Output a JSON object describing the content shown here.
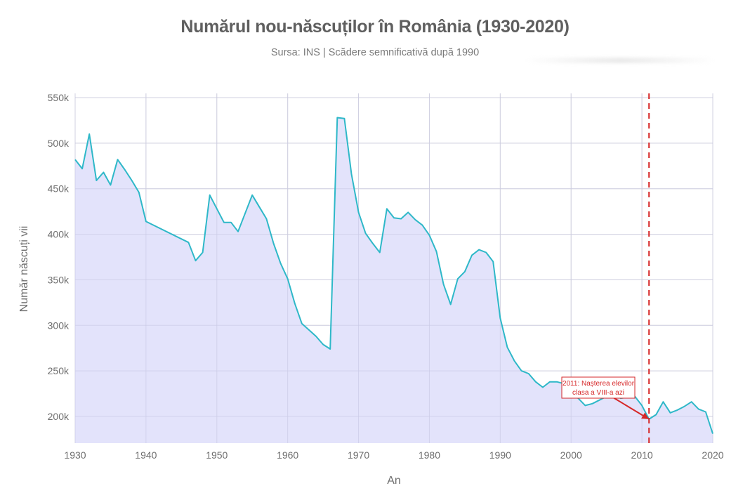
{
  "header": {
    "title": "Numărul nou-născuților în România (1930-2020)",
    "subtitle": "Sursa: INS | Scădere semnificativă după 1990"
  },
  "colors": {
    "line": "#2eb8c8",
    "fill": "#e0e0fb",
    "grid": "#dcdcdc",
    "annotation": "#d62728",
    "title": "#5f5f5f",
    "tick": "#6e6e6e"
  },
  "chart_data": {
    "type": "area",
    "title": "Numărul nou-născuților în România (1930-2020)",
    "subtitle": "Sursa: INS | Scădere semnificativă după 1990",
    "xlabel": "An",
    "ylabel": "Număr născuți vii",
    "xlim": [
      1930,
      2020
    ],
    "ylim": [
      170000,
      555000
    ],
    "x_ticks": [
      1930,
      1940,
      1950,
      1960,
      1970,
      1980,
      1990,
      2000,
      2010,
      2020
    ],
    "y_ticks": [
      200000,
      250000,
      300000,
      350000,
      400000,
      450000,
      500000,
      550000
    ],
    "y_tick_labels": [
      "200k",
      "250k",
      "300k",
      "350k",
      "400k",
      "450k",
      "500k",
      "550k"
    ],
    "grid": true,
    "legend": null,
    "series": [
      {
        "name": "Născuți vii",
        "x": [
          1930,
          1931,
          1932,
          1933,
          1934,
          1935,
          1936,
          1937,
          1938,
          1939,
          1940,
          1946,
          1947,
          1948,
          1949,
          1950,
          1951,
          1952,
          1953,
          1954,
          1955,
          1956,
          1957,
          1958,
          1959,
          1960,
          1961,
          1962,
          1963,
          1964,
          1965,
          1966,
          1967,
          1968,
          1969,
          1970,
          1971,
          1972,
          1973,
          1974,
          1975,
          1976,
          1977,
          1978,
          1979,
          1980,
          1981,
          1982,
          1983,
          1984,
          1985,
          1986,
          1987,
          1988,
          1989,
          1990,
          1991,
          1992,
          1993,
          1994,
          1995,
          1996,
          1997,
          1998,
          1999,
          2000,
          2001,
          2002,
          2003,
          2004,
          2005,
          2006,
          2007,
          2008,
          2009,
          2010,
          2011,
          2012,
          2013,
          2014,
          2015,
          2016,
          2017,
          2018,
          2019,
          2020
        ],
        "values": [
          482000,
          472000,
          510000,
          459000,
          468000,
          454000,
          482000,
          471000,
          459000,
          446000,
          414000,
          391000,
          371000,
          380000,
          443000,
          428000,
          413000,
          413000,
          403000,
          423000,
          443000,
          430000,
          417000,
          390000,
          368000,
          351000,
          324000,
          302000,
          295000,
          288000,
          279000,
          274000,
          528000,
          527000,
          466000,
          424000,
          401000,
          390000,
          380000,
          428000,
          418000,
          417000,
          424000,
          416000,
          410000,
          399000,
          381000,
          345000,
          323000,
          351000,
          359000,
          377000,
          383000,
          380000,
          370000,
          308000,
          276000,
          261000,
          250000,
          247000,
          238000,
          232000,
          238000,
          238000,
          236000,
          234000,
          220000,
          212000,
          214000,
          218000,
          222000,
          224000,
          220000,
          221000,
          222000,
          212000,
          197000,
          202000,
          216000,
          204000,
          207000,
          211000,
          216000,
          208000,
          205000,
          181000
        ]
      }
    ],
    "annotations": [
      {
        "text_line1": "2011: Nașterea elevilor",
        "text_line2": "clasa a VIII-a azi",
        "x": 2011,
        "y": 197000,
        "arrow": true
      },
      {
        "type": "vline",
        "x": 2011,
        "style": "dashed",
        "color": "#d62728"
      }
    ]
  }
}
